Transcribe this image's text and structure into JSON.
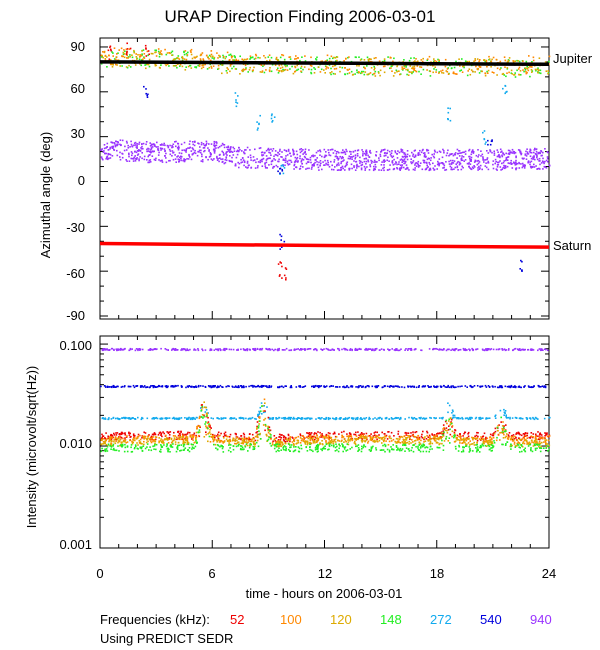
{
  "chart_data": {
    "title": "URAP Direction Finding  2006-03-01",
    "xlabel": "time - hours on 2006-03-01",
    "xlim": [
      0,
      24
    ],
    "xticks": [
      0,
      6,
      12,
      18,
      24
    ],
    "xtick_labels": [
      "0",
      "6",
      "12",
      "18",
      "24"
    ],
    "panels": [
      {
        "id": "azimuth",
        "type": "scatter",
        "ylabel": "Azimuthal angle (deg)",
        "ylim": [
          -92,
          96
        ],
        "yticks": [
          90,
          60,
          30,
          0,
          -30,
          -60,
          -90
        ],
        "ytick_labels": [
          "90",
          "60",
          "30",
          "0",
          "-30",
          "-60",
          "-90"
        ],
        "reference_lines": [
          {
            "name": "Jupiter",
            "color": "#000000",
            "x": [
              0,
              6,
              12,
              18,
              24
            ],
            "y": [
              80,
              79.6,
              79.2,
              78.8,
              78.4
            ]
          },
          {
            "name": "Saturn",
            "color": "#ff0000",
            "x": [
              0,
              6,
              12,
              18,
              24
            ],
            "y": [
              -41.5,
              -42.2,
              -42.8,
              -43.4,
              -43.9
            ]
          }
        ],
        "series": [
          {
            "name": "940 kHz",
            "color": "#9933ff",
            "x": [
              0,
              3,
              6,
              7,
              9,
              12,
              15,
              18,
              21,
              24
            ],
            "y": [
              22,
              20,
              21,
              17,
              16,
              15,
              15,
              15,
              15,
              16
            ]
          },
          {
            "name": "148 kHz",
            "color": "#22ee22",
            "x": [
              0,
              3,
              6,
              9,
              12,
              15,
              18,
              21,
              24
            ],
            "y": [
              82,
              83,
              80,
              79,
              78,
              78,
              77,
              76,
              77
            ]
          },
          {
            "name": "120 kHz",
            "color": "#ddaa00",
            "x": [
              0,
              3,
              6,
              9,
              12,
              15,
              18,
              21,
              24
            ],
            "y": [
              83,
              82,
              79,
              78,
              78,
              77,
              77,
              77,
              78
            ]
          },
          {
            "name": "100 kHz",
            "color": "#ff8800",
            "x": [
              0,
              4,
              8,
              12,
              16,
              20,
              24
            ],
            "y": [
              85,
              84,
              80,
              79,
              78,
              78,
              79
            ]
          },
          {
            "name": "52 kHz",
            "color": "#ee0000",
            "x": [
              0.5,
              1.5,
              2.5,
              9.6,
              9.8
            ],
            "y": [
              86,
              88,
              87,
              -58,
              -62
            ]
          },
          {
            "name": "272 kHz",
            "color": "#11aaee",
            "x": [
              7.3,
              8.4,
              9.2,
              9.7,
              18.6,
              20.5,
              21.6
            ],
            "y": [
              55,
              40,
              45,
              10,
              45,
              30,
              60
            ]
          },
          {
            "name": "540 kHz",
            "color": "#0000dd",
            "x": [
              2.4,
              9.6,
              9.7,
              20.8,
              22.5
            ],
            "y": [
              60,
              5,
              -40,
              25,
              -55
            ]
          }
        ]
      },
      {
        "id": "intensity",
        "type": "scatter",
        "yscale": "log",
        "ylabel": "Intensity (microvolt/sqrt(Hz))",
        "ylim": [
          0.001,
          0.12
        ],
        "yticks": [
          0.1,
          0.01,
          0.001
        ],
        "ytick_labels": [
          "0.100",
          "0.010",
          "0.001"
        ],
        "series": [
          {
            "name": "940 kHz",
            "color": "#9933ff",
            "x": [
              0,
              6,
              12,
              18,
              24
            ],
            "y": [
              0.09,
              0.09,
              0.09,
              0.09,
              0.09
            ]
          },
          {
            "name": "540 kHz",
            "color": "#0000dd",
            "x": [
              0,
              6,
              12,
              18,
              24
            ],
            "y": [
              0.039,
              0.039,
              0.039,
              0.039,
              0.039
            ]
          },
          {
            "name": "272 kHz",
            "color": "#11aaee",
            "x": [
              0,
              6,
              12,
              18,
              24
            ],
            "y": [
              0.019,
              0.019,
              0.019,
              0.019,
              0.019
            ]
          },
          {
            "name": "52 kHz",
            "color": "#ee0000",
            "x": [
              0,
              3,
              6,
              9,
              12,
              15,
              18,
              21,
              24
            ],
            "y": [
              0.0125,
              0.013,
              0.013,
              0.012,
              0.013,
              0.013,
              0.013,
              0.0125,
              0.013
            ]
          },
          {
            "name": "100 kHz",
            "color": "#ff8800",
            "x": [
              0,
              3,
              6,
              9,
              12,
              15,
              18,
              21,
              24
            ],
            "y": [
              0.0115,
              0.012,
              0.012,
              0.0115,
              0.012,
              0.012,
              0.012,
              0.0115,
              0.012
            ]
          },
          {
            "name": "120 kHz",
            "color": "#ddaa00",
            "x": [
              0,
              3,
              6,
              9,
              12,
              15,
              18,
              21,
              24
            ],
            "y": [
              0.011,
              0.0115,
              0.0115,
              0.011,
              0.0115,
              0.0115,
              0.0115,
              0.011,
              0.011
            ]
          },
          {
            "name": "148 kHz",
            "color": "#22ee22",
            "x": [
              0,
              3,
              6,
              9,
              12,
              15,
              18,
              21,
              24
            ],
            "y": [
              0.0098,
              0.0098,
              0.0098,
              0.0098,
              0.0098,
              0.0098,
              0.0098,
              0.0098,
              0.0098
            ]
          }
        ],
        "bursts": [
          {
            "x": 5.5,
            "y": 0.03
          },
          {
            "x": 8.7,
            "y": 0.032
          },
          {
            "x": 18.6,
            "y": 0.022
          },
          {
            "x": 21.4,
            "y": 0.02
          }
        ]
      }
    ],
    "legend": {
      "prefix": "Frequencies (kHz):",
      "entries": [
        {
          "label": "52",
          "color": "#ee0000"
        },
        {
          "label": "100",
          "color": "#ff8800"
        },
        {
          "label": "120",
          "color": "#ddaa00"
        },
        {
          "label": "148",
          "color": "#22ee22"
        },
        {
          "label": "272",
          "color": "#11aaee"
        },
        {
          "label": "540",
          "color": "#0000dd"
        },
        {
          "label": "940",
          "color": "#9933ff"
        }
      ],
      "note": "Using PREDICT SEDR"
    }
  }
}
